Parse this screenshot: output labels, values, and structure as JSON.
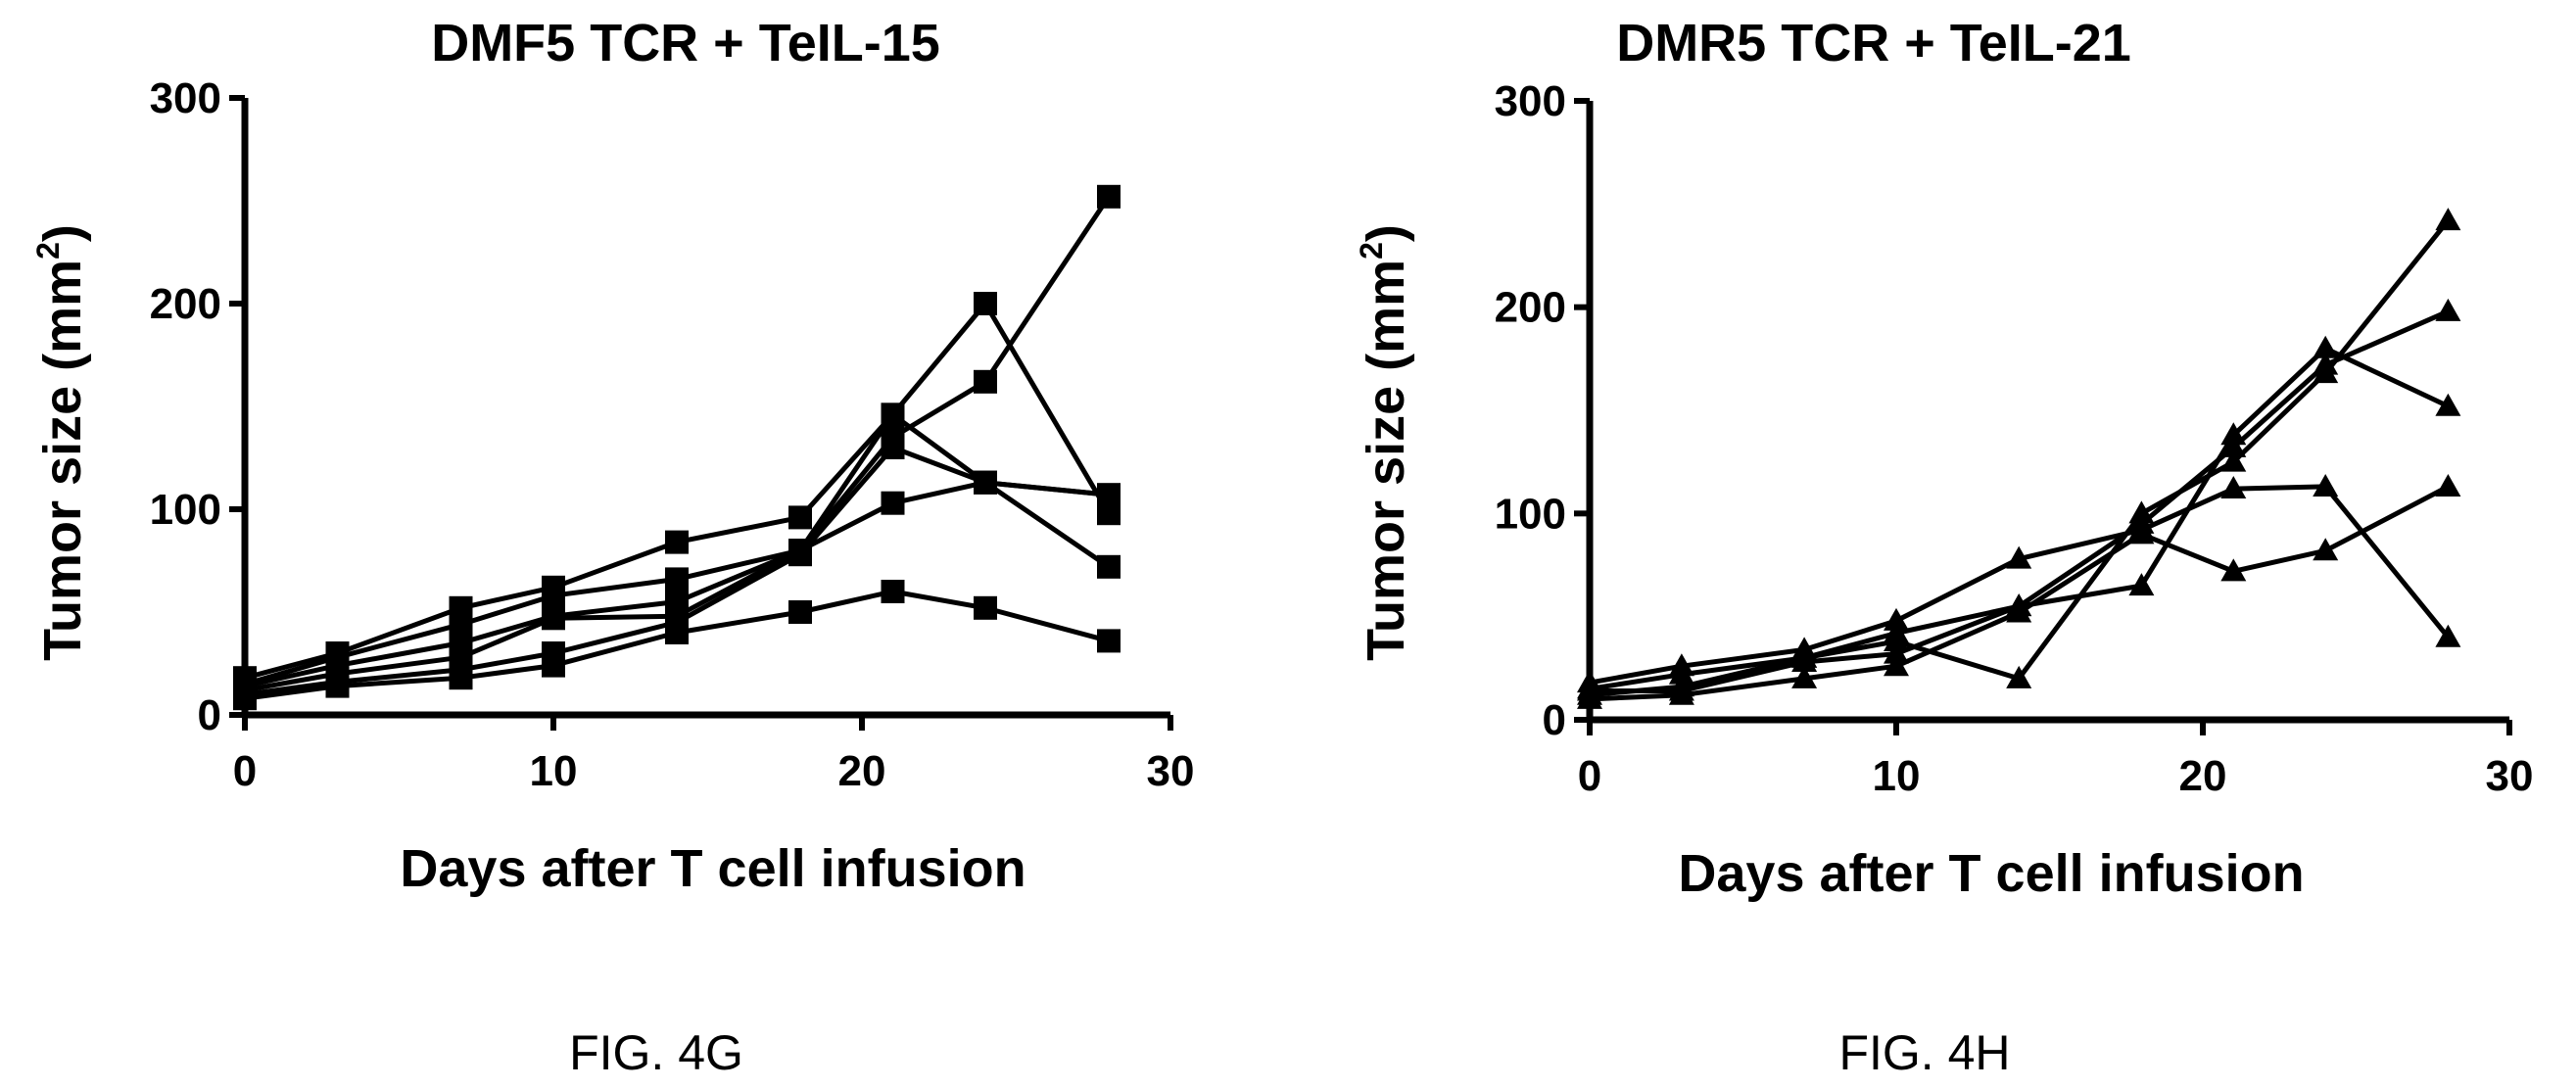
{
  "chart_data": [
    {
      "type": "line",
      "title": "DMF5 TCR + TeIL-15",
      "xlabel": "Days after T cell infusion",
      "ylabel": "Tumor size (mm",
      "ylabel_superscript": "2",
      "ylabel_close": ")",
      "caption": "FIG. 4G",
      "xlim": [
        0,
        30
      ],
      "ylim": [
        0,
        300
      ],
      "xticks": [
        0,
        10,
        20,
        30
      ],
      "yticks": [
        0,
        100,
        200,
        300
      ],
      "marker": "square",
      "series": [
        {
          "x": [
            0,
            3,
            7,
            10,
            14,
            18,
            21,
            24,
            28
          ],
          "y": [
            18,
            30,
            52,
            62,
            84,
            96,
            146,
            200,
            98
          ]
        },
        {
          "x": [
            0,
            3,
            7,
            10,
            14,
            18,
            21,
            24,
            28
          ],
          "y": [
            15,
            28,
            44,
            58,
            66,
            80,
            135,
            162,
            252
          ]
        },
        {
          "x": [
            0,
            3,
            7,
            10,
            14,
            18,
            21,
            24,
            28
          ],
          "y": [
            14,
            24,
            35,
            48,
            55,
            80,
            146,
            113,
            72
          ]
        },
        {
          "x": [
            0,
            3,
            7,
            10,
            14,
            18,
            21,
            24,
            28
          ],
          "y": [
            12,
            20,
            28,
            47,
            48,
            80,
            103,
            113,
            107
          ]
        },
        {
          "x": [
            0,
            3,
            7,
            10,
            14,
            18,
            21,
            24,
            28
          ],
          "y": [
            10,
            16,
            22,
            30,
            45,
            78,
            130,
            113,
            107
          ]
        },
        {
          "x": [
            0,
            3,
            7,
            10,
            14,
            18,
            21,
            24,
            28
          ],
          "y": [
            8,
            14,
            18,
            24,
            40,
            50,
            60,
            52,
            36
          ]
        }
      ]
    },
    {
      "type": "line",
      "title": "DMR5 TCR + TeIL-21",
      "xlabel": "Days after T cell infusion",
      "ylabel": "Tumor size (mm",
      "ylabel_superscript": "2",
      "ylabel_close": ")",
      "caption": "FIG. 4H",
      "xlim": [
        0,
        30
      ],
      "ylim": [
        0,
        300
      ],
      "xticks": [
        0,
        10,
        20,
        30
      ],
      "yticks": [
        0,
        100,
        200,
        300
      ],
      "marker": "triangle",
      "series": [
        {
          "x": [
            0,
            3,
            7,
            10,
            14,
            18,
            21,
            24,
            28
          ],
          "y": [
            18,
            26,
            34,
            48,
            78,
            92,
            112,
            113,
            40
          ]
        },
        {
          "x": [
            0,
            3,
            7,
            10,
            14,
            18,
            21,
            24,
            28
          ],
          "y": [
            15,
            22,
            30,
            42,
            55,
            65,
            138,
            180,
            152
          ]
        },
        {
          "x": [
            0,
            3,
            7,
            10,
            14,
            18,
            21,
            24,
            28
          ],
          "y": [
            12,
            16,
            30,
            38,
            20,
            100,
            125,
            168,
            242
          ]
        },
        {
          "x": [
            0,
            3,
            7,
            10,
            14,
            18,
            21,
            24,
            28
          ],
          "y": [
            10,
            12,
            20,
            26,
            52,
            90,
            72,
            82,
            113
          ]
        },
        {
          "x": [
            0,
            3,
            7,
            10,
            14,
            18,
            21,
            24,
            28
          ],
          "y": [
            14,
            14,
            28,
            32,
            55,
            95,
            132,
            172,
            198
          ]
        }
      ]
    }
  ]
}
